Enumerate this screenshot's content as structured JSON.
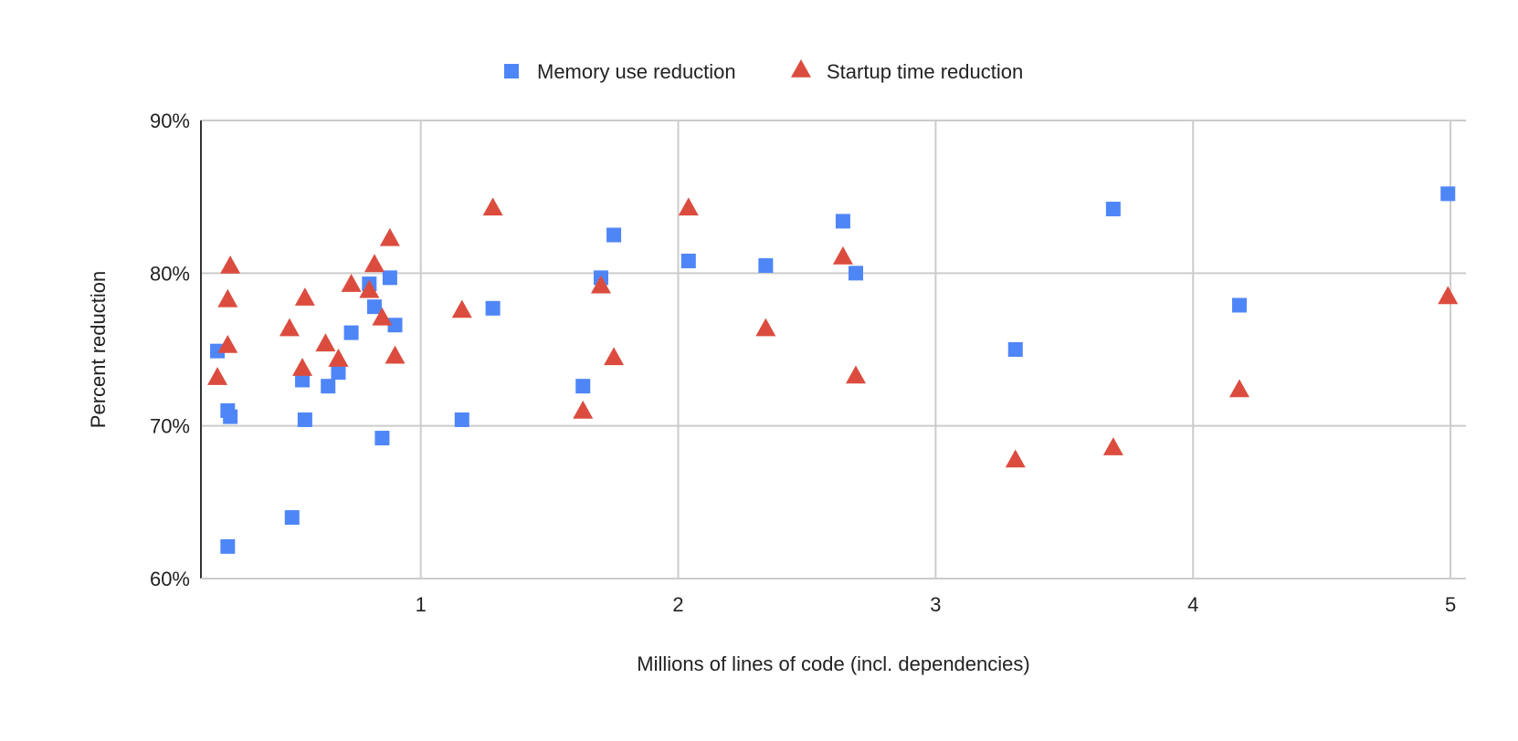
{
  "chart_data": {
    "type": "scatter",
    "title": "",
    "xlabel": "Millions of lines of code (incl. dependencies)",
    "ylabel": "Percent reduction",
    "xlim": [
      0.146,
      5.06
    ],
    "ylim": [
      60,
      90
    ],
    "x_ticks": [
      1,
      2,
      3,
      4,
      5
    ],
    "x_tick_labels": [
      "1",
      "2",
      "3",
      "4",
      "5"
    ],
    "y_ticks": [
      60,
      70,
      80,
      90
    ],
    "y_tick_labels": [
      "60%",
      "70%",
      "80%",
      "90%"
    ],
    "grid": true,
    "legend_position": "top",
    "series": [
      {
        "name": "Memory use reduction",
        "marker": "square",
        "color": "#4f86f7",
        "points": [
          {
            "x": 0.21,
            "y": 74.9
          },
          {
            "x": 0.25,
            "y": 71.0
          },
          {
            "x": 0.26,
            "y": 70.6
          },
          {
            "x": 0.25,
            "y": 62.1
          },
          {
            "x": 0.5,
            "y": 64.0
          },
          {
            "x": 0.54,
            "y": 73.0
          },
          {
            "x": 0.55,
            "y": 70.4
          },
          {
            "x": 0.64,
            "y": 72.6
          },
          {
            "x": 0.68,
            "y": 73.5
          },
          {
            "x": 0.73,
            "y": 76.1
          },
          {
            "x": 0.8,
            "y": 79.3
          },
          {
            "x": 0.82,
            "y": 77.8
          },
          {
            "x": 0.85,
            "y": 69.2
          },
          {
            "x": 0.88,
            "y": 79.7
          },
          {
            "x": 0.9,
            "y": 76.6
          },
          {
            "x": 1.16,
            "y": 70.4
          },
          {
            "x": 1.28,
            "y": 77.7
          },
          {
            "x": 1.63,
            "y": 72.6
          },
          {
            "x": 1.7,
            "y": 79.7
          },
          {
            "x": 1.75,
            "y": 82.5
          },
          {
            "x": 2.04,
            "y": 80.8
          },
          {
            "x": 2.34,
            "y": 80.5
          },
          {
            "x": 2.64,
            "y": 83.4
          },
          {
            "x": 2.69,
            "y": 80.0
          },
          {
            "x": 3.31,
            "y": 75.0
          },
          {
            "x": 3.69,
            "y": 84.2
          },
          {
            "x": 4.18,
            "y": 77.9
          },
          {
            "x": 4.99,
            "y": 85.2
          }
        ]
      },
      {
        "name": "Startup time reduction",
        "marker": "triangle",
        "color": "#db4c3f",
        "points": [
          {
            "x": 0.21,
            "y": 73.2
          },
          {
            "x": 0.25,
            "y": 75.3
          },
          {
            "x": 0.25,
            "y": 78.3
          },
          {
            "x": 0.26,
            "y": 80.5
          },
          {
            "x": 0.49,
            "y": 76.4
          },
          {
            "x": 0.54,
            "y": 73.8
          },
          {
            "x": 0.55,
            "y": 78.4
          },
          {
            "x": 0.63,
            "y": 75.4
          },
          {
            "x": 0.68,
            "y": 74.4
          },
          {
            "x": 0.73,
            "y": 79.3
          },
          {
            "x": 0.8,
            "y": 78.9
          },
          {
            "x": 0.82,
            "y": 80.6
          },
          {
            "x": 0.85,
            "y": 77.1
          },
          {
            "x": 0.88,
            "y": 82.3
          },
          {
            "x": 0.9,
            "y": 74.6
          },
          {
            "x": 1.16,
            "y": 77.6
          },
          {
            "x": 1.28,
            "y": 84.3
          },
          {
            "x": 1.63,
            "y": 71.0
          },
          {
            "x": 1.7,
            "y": 79.2
          },
          {
            "x": 1.75,
            "y": 74.5
          },
          {
            "x": 2.04,
            "y": 84.3
          },
          {
            "x": 2.34,
            "y": 76.4
          },
          {
            "x": 2.64,
            "y": 81.1
          },
          {
            "x": 2.69,
            "y": 73.3
          },
          {
            "x": 3.31,
            "y": 67.8
          },
          {
            "x": 3.69,
            "y": 68.6
          },
          {
            "x": 4.18,
            "y": 72.4
          },
          {
            "x": 4.99,
            "y": 78.5
          }
        ]
      }
    ]
  }
}
